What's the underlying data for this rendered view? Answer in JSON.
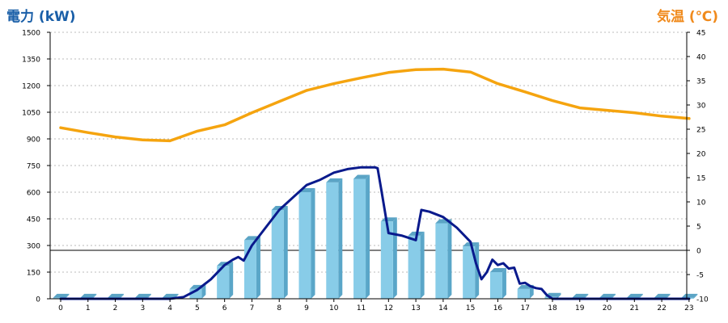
{
  "colors": {
    "left_axis_title": "#1a5fa8",
    "right_axis_title": "#f08a1c",
    "bar_front": "#88cce8",
    "bar_side": "#5aa6c8",
    "bar_top": "#5ba4c5",
    "power_line": "#0a1a8c",
    "temp_line": "#f5a40f",
    "grid": "#bbbbbb",
    "axis": "#000000"
  },
  "chart_data": {
    "type": "bar",
    "ylabel": "電力 (kW)",
    "y2label": "気温 (℃)",
    "categories": [
      "0",
      "1",
      "2",
      "3",
      "4",
      "5",
      "6",
      "7",
      "8",
      "9",
      "10",
      "11",
      "12",
      "13",
      "14",
      "15",
      "16",
      "17",
      "18",
      "19",
      "20",
      "21",
      "22",
      "23"
    ],
    "ylim": [
      0,
      1500
    ],
    "yticks": [
      0,
      150,
      300,
      450,
      600,
      750,
      900,
      1050,
      1200,
      1350,
      1500
    ],
    "y2lim": [
      -10,
      45
    ],
    "y2ticks": [
      -10,
      -5,
      0,
      5,
      10,
      15,
      20,
      25,
      30,
      35,
      40,
      45
    ],
    "grid": true,
    "series": [
      {
        "type": "bar",
        "axis": "left",
        "values": [
          5,
          5,
          5,
          5,
          5,
          55,
          185,
          330,
          500,
          600,
          655,
          675,
          435,
          355,
          425,
          295,
          150,
          55,
          10,
          5,
          5,
          5,
          5,
          5
        ]
      },
      {
        "type": "line",
        "axis": "left",
        "x": [
          0,
          1,
          2,
          3,
          4,
          4.5,
          5,
          5.5,
          6,
          6.3,
          6.5,
          6.7,
          7,
          8,
          9,
          9.5,
          10,
          10.5,
          11,
          11.5,
          11.6,
          11.75,
          12,
          12.5,
          13,
          13.2,
          13.5,
          14,
          14.5,
          15,
          15.2,
          15.4,
          15.6,
          15.8,
          16,
          16.2,
          16.4,
          16.6,
          16.8,
          17,
          17.2,
          17.4,
          17.6,
          17.8,
          18,
          19,
          20,
          21,
          22,
          23
        ],
        "values": [
          0,
          0,
          0,
          0,
          0,
          10,
          50,
          110,
          190,
          220,
          235,
          215,
          300,
          500,
          640,
          670,
          710,
          730,
          740,
          740,
          735,
          600,
          370,
          355,
          330,
          500,
          490,
          460,
          400,
          320,
          200,
          110,
          150,
          220,
          190,
          200,
          170,
          175,
          85,
          90,
          70,
          60,
          55,
          20,
          0,
          0,
          0,
          0,
          0,
          0
        ]
      },
      {
        "type": "line",
        "axis": "right",
        "x": [
          0,
          1,
          2,
          3,
          4,
          5,
          6,
          7,
          8,
          9,
          10,
          11,
          12,
          13,
          14,
          15,
          16,
          17,
          18,
          19,
          20,
          21,
          22,
          23
        ],
        "values": [
          25.3,
          24.3,
          23.4,
          22.8,
          22.6,
          24.6,
          25.9,
          28.4,
          30.7,
          33.0,
          34.4,
          35.6,
          36.7,
          37.3,
          37.4,
          36.8,
          34.4,
          32.7,
          30.9,
          29.4,
          28.9,
          28.4,
          27.7,
          27.2
        ]
      }
    ]
  }
}
